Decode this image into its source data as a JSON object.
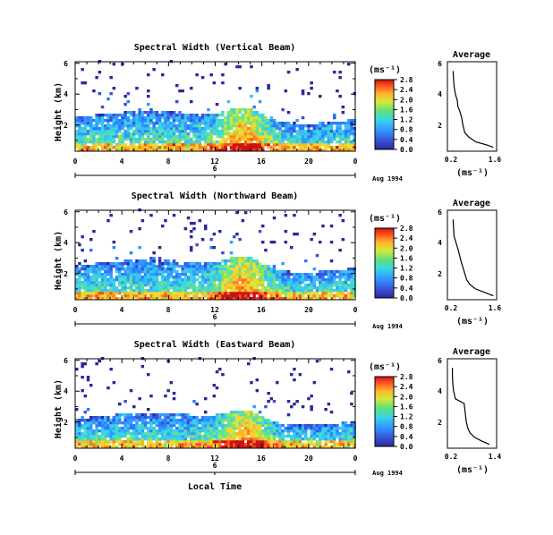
{
  "figure": {
    "xlabel": "Local Time",
    "date_label": "Aug 1994",
    "date_day": "6"
  },
  "chart_data": [
    {
      "type": "heatmap",
      "title": "Spectral Width (Vertical Beam)",
      "ylabel": "Height (km)",
      "xlabel": "",
      "xlim": [
        0,
        24
      ],
      "ylim": [
        0.3,
        6.1
      ],
      "x_ticks": [
        "0",
        "4",
        "8",
        "12",
        "16",
        "20",
        "0"
      ],
      "y_ticks": [
        "2",
        "4",
        "6"
      ],
      "colorbar": {
        "unit": "(ms⁻¹)",
        "ticks": [
          "0.0",
          "0.4",
          "0.8",
          "1.2",
          "1.6",
          "2.0",
          "2.4",
          "2.8"
        ]
      },
      "avg": {
        "title": "Average",
        "xlabel": "(ms⁻¹)",
        "x_ticks": [
          "0.2",
          "1.6"
        ],
        "y_ticks": [
          "2",
          "4",
          "6"
        ],
        "profile": [
          [
            0.55,
            1.55
          ],
          [
            0.7,
            1.35
          ],
          [
            0.9,
            1.0
          ],
          [
            1.2,
            0.78
          ],
          [
            1.5,
            0.64
          ],
          [
            2.0,
            0.58
          ],
          [
            2.5,
            0.54
          ],
          [
            2.9,
            0.48
          ],
          [
            3.2,
            0.42
          ],
          [
            3.6,
            0.4
          ],
          [
            4.0,
            0.34
          ],
          [
            4.5,
            0.3
          ],
          [
            5.0,
            0.28
          ],
          [
            5.5,
            0.27
          ]
        ]
      }
    },
    {
      "type": "heatmap",
      "title": "Spectral Width (Northward Beam)",
      "ylabel": "Height (km)",
      "xlabel": "",
      "xlim": [
        0,
        24
      ],
      "ylim": [
        0.3,
        6.1
      ],
      "x_ticks": [
        "0",
        "4",
        "8",
        "12",
        "16",
        "20",
        "0"
      ],
      "y_ticks": [
        "2",
        "4",
        "6"
      ],
      "colorbar": {
        "unit": "(ms⁻¹)",
        "ticks": [
          "0.0",
          "0.4",
          "0.8",
          "1.2",
          "1.6",
          "2.0",
          "2.4",
          "2.8"
        ]
      },
      "avg": {
        "title": "Average",
        "xlabel": "(ms⁻¹)",
        "x_ticks": [
          "0.2",
          "1.6"
        ],
        "y_ticks": [
          "2",
          "4",
          "6"
        ],
        "profile": [
          [
            0.55,
            1.55
          ],
          [
            0.75,
            1.3
          ],
          [
            1.0,
            0.98
          ],
          [
            1.3,
            0.8
          ],
          [
            1.6,
            0.7
          ],
          [
            2.0,
            0.64
          ],
          [
            2.4,
            0.58
          ],
          [
            2.8,
            0.52
          ],
          [
            3.2,
            0.47
          ],
          [
            3.6,
            0.42
          ],
          [
            4.0,
            0.36
          ],
          [
            4.4,
            0.3
          ],
          [
            5.0,
            0.28
          ],
          [
            5.5,
            0.27
          ]
        ]
      }
    },
    {
      "type": "heatmap",
      "title": "Spectral Width (Eastward Beam)",
      "ylabel": "Height (km)",
      "xlabel": "",
      "xlim": [
        0,
        24
      ],
      "ylim": [
        0.3,
        6.1
      ],
      "x_ticks": [
        "0",
        "4",
        "8",
        "12",
        "16",
        "20",
        "0"
      ],
      "y_ticks": [
        "2",
        "4",
        "6"
      ],
      "colorbar": {
        "unit": "(ms⁻¹)",
        "ticks": [
          "0.0",
          "0.4",
          "0.8",
          "1.2",
          "1.6",
          "2.0",
          "2.4",
          "2.8"
        ]
      },
      "avg": {
        "title": "Average",
        "xlabel": "(ms⁻¹)",
        "x_ticks": [
          "0.2",
          "1.4"
        ],
        "y_ticks": [
          "2",
          "4",
          "6"
        ],
        "profile": [
          [
            0.55,
            1.25
          ],
          [
            0.75,
            1.05
          ],
          [
            1.0,
            0.85
          ],
          [
            1.3,
            0.72
          ],
          [
            1.6,
            0.66
          ],
          [
            2.0,
            0.62
          ],
          [
            2.4,
            0.6
          ],
          [
            2.8,
            0.58
          ],
          [
            3.2,
            0.56
          ],
          [
            3.5,
            0.32
          ],
          [
            4.0,
            0.27
          ],
          [
            4.5,
            0.25
          ],
          [
            5.0,
            0.24
          ],
          [
            5.5,
            0.24
          ]
        ]
      }
    }
  ]
}
